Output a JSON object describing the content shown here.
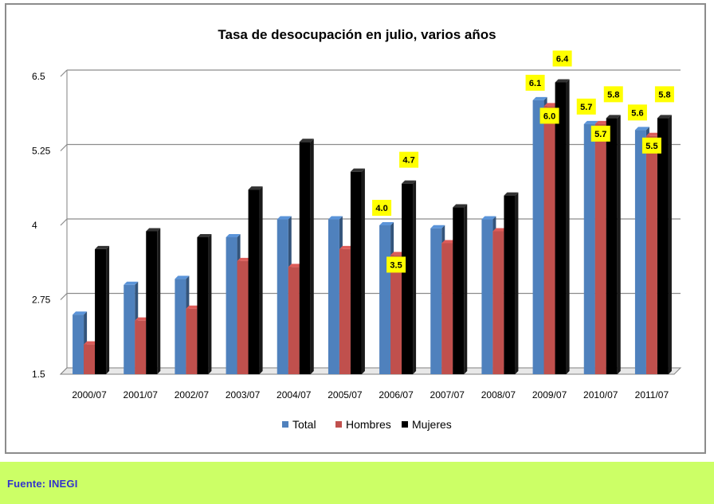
{
  "chart_data": {
    "type": "bar",
    "title": "Tasa de desocupación en julio, varios años",
    "categories": [
      "2000/07",
      "2001/07",
      "2002/07",
      "2003/07",
      "2004/07",
      "2005/07",
      "2006/07",
      "2007/07",
      "2008/07",
      "2009/07",
      "2010/07",
      "2011/07"
    ],
    "series": [
      {
        "name": "Total",
        "color": "#4f81bd",
        "values": [
          2.5,
          3.0,
          3.1,
          3.8,
          4.1,
          4.1,
          4.0,
          3.95,
          4.1,
          6.1,
          5.7,
          5.6
        ]
      },
      {
        "name": "Hombres",
        "color": "#c0504d",
        "values": [
          2.0,
          2.4,
          2.6,
          3.4,
          3.3,
          3.6,
          3.5,
          3.7,
          3.9,
          6.0,
          5.7,
          5.5
        ]
      },
      {
        "name": "Mujeres",
        "color": "#000000",
        "values": [
          3.6,
          3.9,
          3.8,
          4.6,
          5.4,
          4.9,
          4.7,
          4.3,
          4.5,
          6.4,
          5.8,
          5.8
        ]
      }
    ],
    "y_ticks": [
      "1.5",
      "2.75",
      "4",
      "5.25",
      "6.5"
    ],
    "ylim": [
      1.5,
      6.5
    ],
    "grid": true,
    "legend": "bottom",
    "data_labels": [
      {
        "category": "2006/07",
        "series": "Total",
        "text": "4.0"
      },
      {
        "category": "2006/07",
        "series": "Hombres",
        "text": "3.5"
      },
      {
        "category": "2006/07",
        "series": "Mujeres",
        "text": "4.7"
      },
      {
        "category": "2009/07",
        "series": "Total",
        "text": "6.1"
      },
      {
        "category": "2009/07",
        "series": "Hombres",
        "text": "6.0"
      },
      {
        "category": "2009/07",
        "series": "Mujeres",
        "text": "6.4"
      },
      {
        "category": "2010/07",
        "series": "Total",
        "text": "5.7"
      },
      {
        "category": "2010/07",
        "series": "Hombres",
        "text": "5.7"
      },
      {
        "category": "2010/07",
        "series": "Mujeres",
        "text": "5.8"
      },
      {
        "category": "2011/07",
        "series": "Total",
        "text": "5.6"
      },
      {
        "category": "2011/07",
        "series": "Hombres",
        "text": "5.5"
      },
      {
        "category": "2011/07",
        "series": "Mujeres",
        "text": "5.8"
      }
    ],
    "label_color": "#ffff00"
  },
  "source": {
    "label": "Fuente:",
    "name": "INEGI"
  }
}
